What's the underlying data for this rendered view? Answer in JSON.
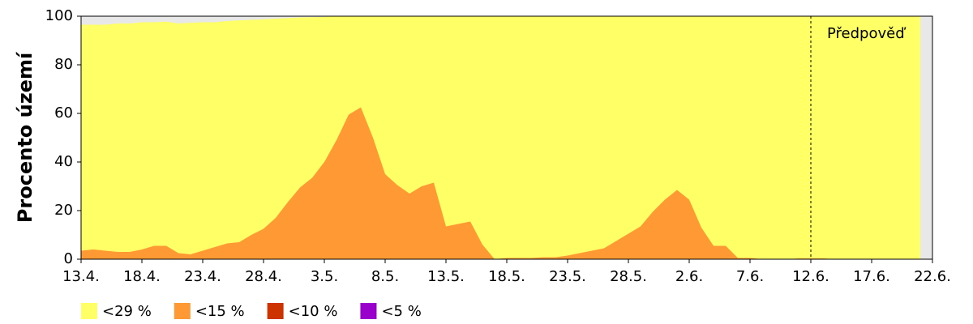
{
  "chart_data": {
    "type": "area",
    "y_label": "Procento území",
    "x": [
      0,
      1,
      2,
      3,
      4,
      5,
      6,
      7,
      8,
      9,
      10,
      11,
      12,
      13,
      14,
      15,
      16,
      17,
      18,
      19,
      20,
      21,
      22,
      23,
      24,
      25,
      26,
      27,
      28,
      29,
      30,
      31,
      32,
      33,
      34,
      35,
      36,
      37,
      38,
      39,
      40,
      41,
      42,
      43,
      44,
      45,
      46,
      47,
      48,
      49,
      50,
      51,
      52,
      53,
      54,
      55,
      56,
      57,
      58,
      59,
      60,
      61,
      62,
      63,
      64,
      65,
      66,
      67,
      68,
      69
    ],
    "xlim": [
      0,
      70
    ],
    "xticks": [
      {
        "value": 0,
        "label": "13.4."
      },
      {
        "value": 5,
        "label": "18.4."
      },
      {
        "value": 10,
        "label": "23.4."
      },
      {
        "value": 15,
        "label": "28.4."
      },
      {
        "value": 20,
        "label": "3.5."
      },
      {
        "value": 25,
        "label": "8.5."
      },
      {
        "value": 30,
        "label": "13.5."
      },
      {
        "value": 35,
        "label": "18.5."
      },
      {
        "value": 40,
        "label": "23.5."
      },
      {
        "value": 45,
        "label": "28.5."
      },
      {
        "value": 50,
        "label": "2.6."
      },
      {
        "value": 55,
        "label": "7.6."
      },
      {
        "value": 60,
        "label": "12.6."
      },
      {
        "value": 65,
        "label": "17.6."
      },
      {
        "value": 70,
        "label": "22.6."
      }
    ],
    "ylim": [
      0,
      100
    ],
    "yticks": [
      0,
      20,
      40,
      60,
      80,
      100
    ],
    "forecast": {
      "x": 60,
      "label": "Předpověď"
    },
    "series": [
      {
        "name": "<29 %",
        "color": "#ffff66",
        "values": [
          96.5,
          96.5,
          96.5,
          97,
          97,
          97.5,
          97.5,
          97.8,
          97,
          97.3,
          97.5,
          97.5,
          98,
          98.3,
          98.5,
          98.7,
          99,
          99.2,
          99.5,
          99.6,
          99.7,
          100,
          100,
          100,
          100,
          100,
          100,
          100,
          100,
          100,
          100,
          100,
          100,
          100,
          100,
          100,
          100,
          100,
          100,
          100,
          100,
          100,
          100,
          100,
          100,
          100,
          100,
          100,
          100,
          100,
          100,
          100,
          100,
          100,
          100,
          100,
          100,
          100,
          100,
          100,
          100,
          100,
          100,
          100,
          100,
          100,
          100,
          100,
          100,
          100
        ]
      },
      {
        "name": "<15 %",
        "color": "#ff9933",
        "values": [
          3.5,
          4,
          3.5,
          3,
          3,
          4,
          5.5,
          5.5,
          2.5,
          2,
          3.5,
          5,
          6.5,
          7,
          10,
          12.5,
          17,
          23.5,
          29.5,
          33.5,
          40,
          49,
          59.5,
          62.5,
          50,
          35,
          30.5,
          27,
          30,
          31.5,
          13.5,
          14.5,
          15.5,
          6,
          0,
          0.5,
          0.5,
          0.5,
          0.8,
          0.8,
          1.5,
          2.5,
          3.5,
          4.5,
          7.5,
          10.5,
          13.5,
          19.5,
          24.5,
          28.5,
          24.5,
          13,
          5.5,
          5.5,
          0.5,
          0.5,
          0,
          0,
          0,
          0.3,
          0.3,
          0.3,
          0,
          0,
          0,
          0,
          0,
          0,
          0,
          0
        ]
      },
      {
        "name": "<10 %",
        "color": "#cc3300",
        "values": [
          0,
          0,
          0,
          0,
          0,
          0,
          0,
          0,
          0,
          0,
          0,
          0,
          0,
          0,
          0,
          0,
          0,
          0,
          0,
          0,
          0,
          0,
          0,
          0,
          0,
          0,
          0,
          0,
          0,
          0,
          0,
          0,
          0,
          0,
          0,
          0,
          0,
          0,
          0,
          0,
          0,
          0,
          0,
          0,
          0,
          0,
          0,
          0,
          0,
          0,
          0,
          0,
          0,
          0,
          0,
          0,
          0,
          0,
          0,
          0,
          0,
          0,
          0,
          0,
          0,
          0,
          0,
          0,
          0,
          0
        ]
      },
      {
        "name": "<5 %",
        "color": "#9900cc",
        "values": [
          0,
          0,
          0,
          0,
          0,
          0,
          0,
          0,
          0,
          0,
          0,
          0,
          0,
          0,
          0,
          0,
          0,
          0,
          0,
          0,
          0,
          0,
          0,
          0,
          0,
          0,
          0,
          0,
          0,
          0,
          0,
          0,
          0,
          0,
          0,
          0,
          0,
          0,
          0,
          0,
          0,
          0,
          0,
          0,
          0,
          0,
          0,
          0,
          0,
          0,
          0,
          0,
          0,
          0,
          0,
          0,
          0,
          0,
          0,
          0,
          0,
          0,
          0,
          0,
          0,
          0,
          0,
          0,
          0,
          0
        ]
      }
    ]
  }
}
